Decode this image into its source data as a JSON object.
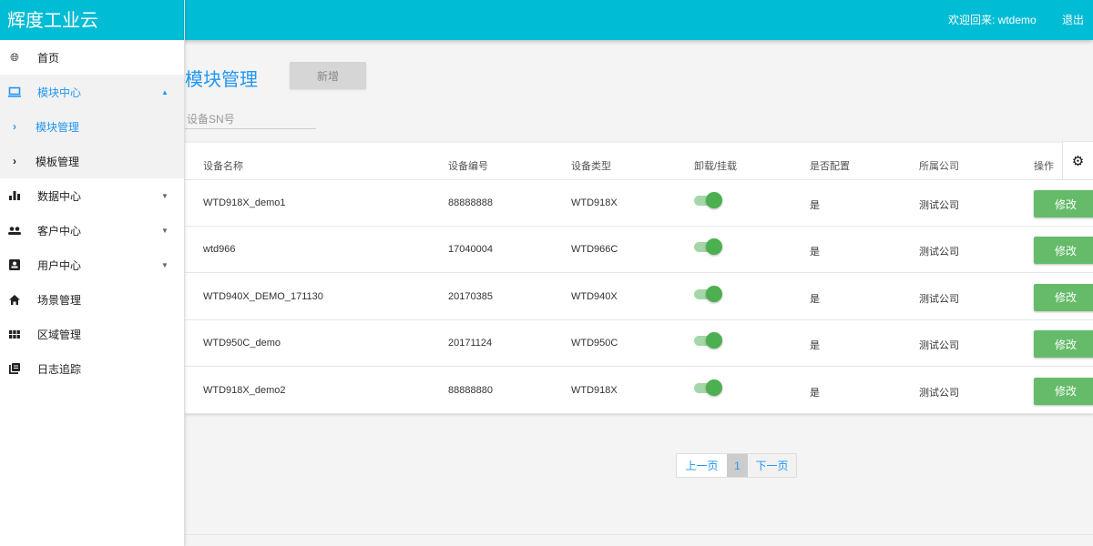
{
  "app": {
    "brand": "辉度工业云",
    "welcome": "欢迎回来: wtdemo",
    "logout": "退出"
  },
  "sidebar": {
    "items": [
      {
        "label": "首页",
        "icon": "globe-icon"
      },
      {
        "label": "模块中心",
        "icon": "laptop-icon",
        "expanded": true,
        "children": [
          {
            "label": "模块管理",
            "active": true
          },
          {
            "label": "模板管理"
          }
        ]
      },
      {
        "label": "数据中心",
        "icon": "bar-chart-icon"
      },
      {
        "label": "客户中心",
        "icon": "people-icon"
      },
      {
        "label": "用户中心",
        "icon": "contact-card-icon"
      },
      {
        "label": "场景管理",
        "icon": "home-icon"
      },
      {
        "label": "区域管理",
        "icon": "grid-icon"
      },
      {
        "label": "日志追踪",
        "icon": "library-books-icon"
      }
    ]
  },
  "main": {
    "title": "模块管理",
    "add_label": "新增",
    "search_placeholder": "设备SN号",
    "columns": [
      "设备名称",
      "设备编号",
      "设备类型",
      "卸载/挂载",
      "是否配置",
      "所属公司",
      "操作"
    ],
    "rows": [
      {
        "name": "WTD918X_demo1",
        "code": "88888888",
        "type": "WTD918X",
        "mounted": true,
        "configured": "是",
        "company": "测试公司",
        "action": "修改"
      },
      {
        "name": "wtd966",
        "code": "17040004",
        "type": "WTD966C",
        "mounted": true,
        "configured": "是",
        "company": "测试公司",
        "action": "修改"
      },
      {
        "name": "WTD940X_DEMO_171130",
        "code": "20170385",
        "type": "WTD940X",
        "mounted": true,
        "configured": "是",
        "company": "测试公司",
        "action": "修改"
      },
      {
        "name": "WTD950C_demo",
        "code": "20171124",
        "type": "WTD950C",
        "mounted": true,
        "configured": "是",
        "company": "测试公司",
        "action": "修改"
      },
      {
        "name": "WTD918X_demo2",
        "code": "88888880",
        "type": "WTD918X",
        "mounted": true,
        "configured": "是",
        "company": "测试公司",
        "action": "修改"
      }
    ],
    "pagination": {
      "prev": "上一页",
      "current": "1",
      "next": "下一页"
    }
  },
  "colors": {
    "header": "#00bcd4",
    "accent": "#2196f3",
    "edit": "#66bb6a",
    "toggle": "#4caf50"
  }
}
